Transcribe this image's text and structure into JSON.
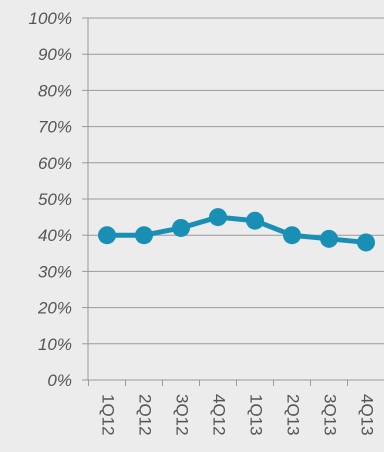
{
  "chart_data": {
    "type": "line",
    "categories": [
      "1Q12",
      "2Q12",
      "3Q12",
      "4Q12",
      "1Q13",
      "2Q13",
      "3Q13",
      "4Q13"
    ],
    "series": [
      {
        "values": [
          40,
          40,
          42,
          45,
          44,
          40,
          39,
          38
        ]
      }
    ],
    "y_ticks": [
      "0%",
      "10%",
      "20%",
      "30%",
      "40%",
      "50%",
      "60%",
      "70%",
      "80%",
      "90%",
      "100%"
    ],
    "ylim": [
      0,
      100
    ],
    "grid": "horizontal",
    "legend": "none",
    "title": "",
    "xlabel": "",
    "ylabel": "",
    "colors": {
      "line": "#1a8fb5",
      "grid": "#9a9a9a",
      "axis": "#9a9a9a",
      "text": "#555555",
      "background": "#ececec"
    }
  }
}
